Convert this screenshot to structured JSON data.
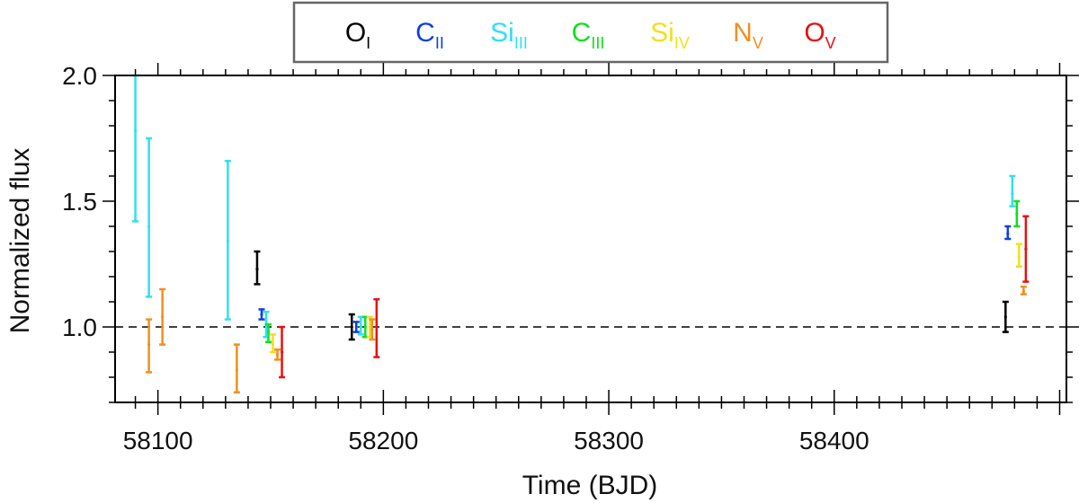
{
  "chart_data": {
    "type": "scatter",
    "title": "",
    "xlabel": "Time (BJD)",
    "ylabel": "Normalized flux",
    "xlim": [
      58081,
      58503
    ],
    "ylim": [
      0.7,
      2.0
    ],
    "x_ticks": [
      58100,
      58200,
      58300,
      58400
    ],
    "y_ticks": [
      1.0,
      1.5,
      2.0
    ],
    "y_tick_labels": [
      "1.0",
      "1.5",
      "2.0"
    ],
    "reference_line": 1.0,
    "legend_position": "top-center, outside plot",
    "series": [
      {
        "name": "O",
        "sub": "I",
        "color": "#000000",
        "points": [
          {
            "x": 58144,
            "y": 1.23,
            "lo": 1.17,
            "hi": 1.3
          },
          {
            "x": 58186,
            "y": 1.0,
            "lo": 0.95,
            "hi": 1.05
          },
          {
            "x": 58476,
            "y": 1.04,
            "lo": 0.98,
            "hi": 1.1
          }
        ]
      },
      {
        "name": "C",
        "sub": "II",
        "color": "#1040e0",
        "points": [
          {
            "x": 58146,
            "y": 1.05,
            "lo": 1.03,
            "hi": 1.07
          },
          {
            "x": 58188,
            "y": 1.0,
            "lo": 0.98,
            "hi": 1.02
          },
          {
            "x": 58477,
            "y": 1.37,
            "lo": 1.35,
            "hi": 1.4
          }
        ]
      },
      {
        "name": "Si",
        "sub": "III",
        "color": "#30e0f0",
        "points": [
          {
            "x": 58090,
            "y": 1.78,
            "lo": 1.42,
            "hi": 2.0
          },
          {
            "x": 58096,
            "y": 1.4,
            "lo": 1.12,
            "hi": 1.75
          },
          {
            "x": 58131,
            "y": 1.34,
            "lo": 1.03,
            "hi": 1.66
          },
          {
            "x": 58148,
            "y": 1.01,
            "lo": 0.96,
            "hi": 1.06
          },
          {
            "x": 58190,
            "y": 1.0,
            "lo": 0.97,
            "hi": 1.04
          },
          {
            "x": 58479,
            "y": 1.53,
            "lo": 1.48,
            "hi": 1.6
          }
        ]
      },
      {
        "name": "C",
        "sub": "III",
        "color": "#10e020",
        "points": [
          {
            "x": 58149,
            "y": 0.98,
            "lo": 0.94,
            "hi": 1.01
          },
          {
            "x": 58192,
            "y": 1.0,
            "lo": 0.96,
            "hi": 1.04
          },
          {
            "x": 58481,
            "y": 1.45,
            "lo": 1.4,
            "hi": 1.5
          }
        ]
      },
      {
        "name": "Si",
        "sub": "IV",
        "color": "#f0e020",
        "points": [
          {
            "x": 58151,
            "y": 0.93,
            "lo": 0.9,
            "hi": 0.97
          },
          {
            "x": 58194,
            "y": 1.0,
            "lo": 0.96,
            "hi": 1.04
          },
          {
            "x": 58482,
            "y": 1.28,
            "lo": 1.24,
            "hi": 1.33
          }
        ]
      },
      {
        "name": "N",
        "sub": "V",
        "color": "#f09020",
        "points": [
          {
            "x": 58096,
            "y": 0.93,
            "lo": 0.82,
            "hi": 1.03
          },
          {
            "x": 58102,
            "y": 1.04,
            "lo": 0.93,
            "hi": 1.15
          },
          {
            "x": 58135,
            "y": 0.83,
            "lo": 0.74,
            "hi": 0.93
          },
          {
            "x": 58153,
            "y": 0.89,
            "lo": 0.87,
            "hi": 0.91
          },
          {
            "x": 58195,
            "y": 0.99,
            "lo": 0.95,
            "hi": 1.03
          },
          {
            "x": 58484,
            "y": 1.14,
            "lo": 1.13,
            "hi": 1.16
          }
        ]
      },
      {
        "name": "O",
        "sub": "V",
        "color": "#e81010",
        "points": [
          {
            "x": 58155,
            "y": 0.9,
            "lo": 0.8,
            "hi": 1.0
          },
          {
            "x": 58197,
            "y": 1.0,
            "lo": 0.88,
            "hi": 1.11
          },
          {
            "x": 58485,
            "y": 1.31,
            "lo": 1.18,
            "hi": 1.44
          }
        ]
      }
    ]
  }
}
